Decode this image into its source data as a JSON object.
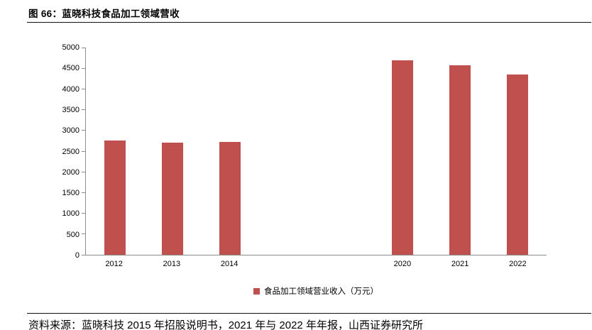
{
  "figure": {
    "title": "图 66：蓝晓科技食品加工领域营收",
    "source": "资料来源：蓝晓科技 2015 年招股说明书，2021 年与 2022 年年报，山西证券研究所"
  },
  "chart_data": {
    "type": "bar",
    "title": "蓝晓科技食品加工领域营收",
    "categories": [
      "2012",
      "2013",
      "2014",
      "",
      "",
      "2020",
      "2021",
      "2022"
    ],
    "values": [
      2750,
      2700,
      2720,
      null,
      null,
      4700,
      4580,
      4350
    ],
    "xlabel": "",
    "ylabel": "",
    "ylim": [
      0,
      5000
    ],
    "yticks": [
      0,
      500,
      1000,
      1500,
      2000,
      2500,
      3000,
      3500,
      4000,
      4500,
      5000
    ],
    "grid": false,
    "legend": [
      "食品加工领域营业收入（万元）"
    ],
    "legend_position": "bottom",
    "bar_color": "#c0504d",
    "axis_color": "#8c8c8c"
  }
}
